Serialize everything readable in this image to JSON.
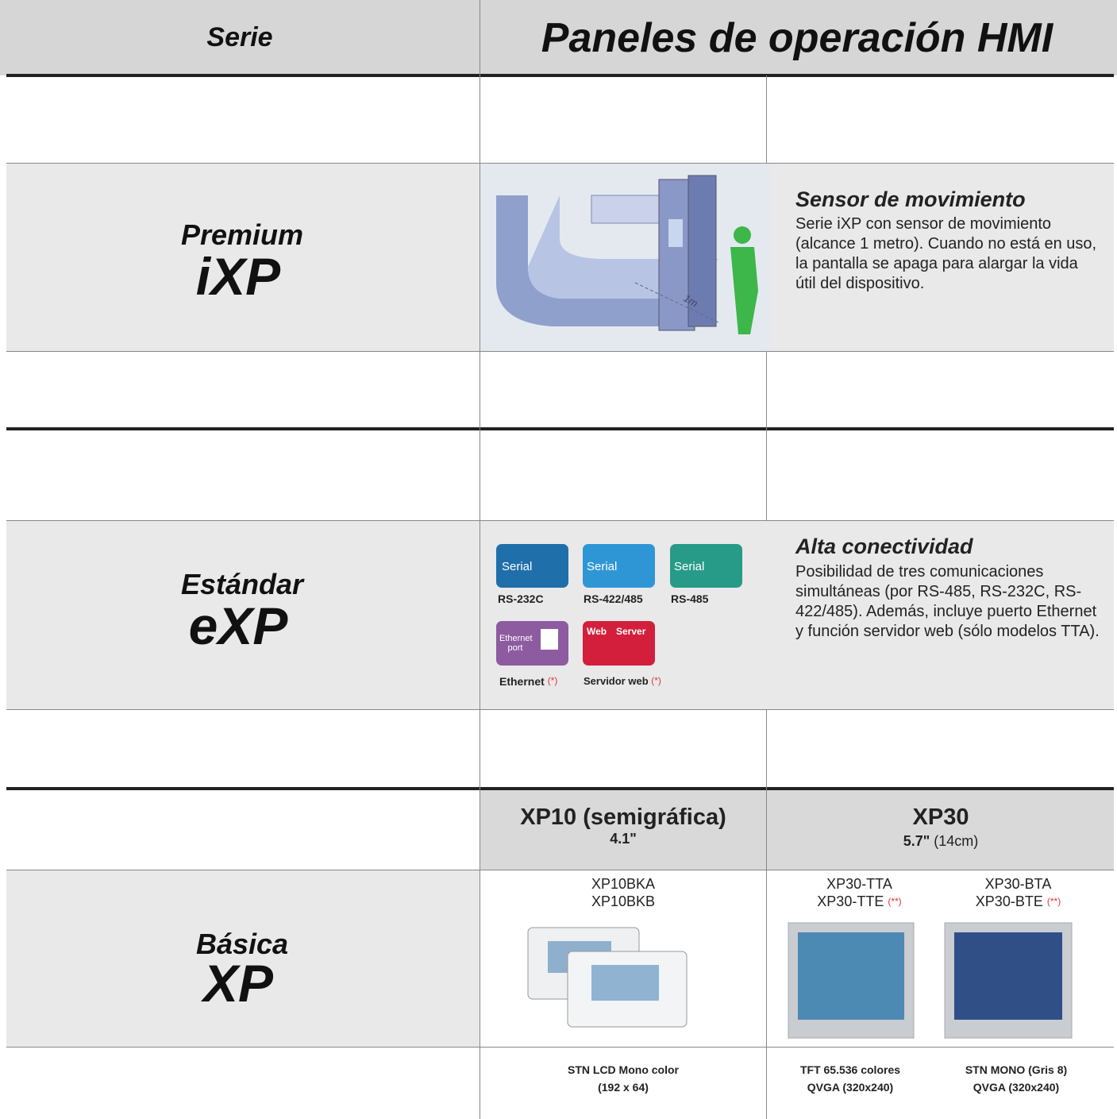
{
  "header": {
    "series": "Serie",
    "title": "Paneles de operación HMI"
  },
  "premium": {
    "tier": "Premium",
    "name": "iXP",
    "illustration_label": "1m",
    "feature": {
      "title": "Sensor de movimiento",
      "text": "Serie iXP con sensor de movimiento (alcance 1 metro). Cuando no está en uso, la pantalla se apaga para alargar la vida útil del dispositivo."
    }
  },
  "standard": {
    "tier": "Estándar",
    "name": "eXP",
    "icons": [
      {
        "label": "Serial",
        "caption": "RS-232C"
      },
      {
        "label": "Serial",
        "caption": "RS-422/485"
      },
      {
        "label": "Serial",
        "caption": "RS-485"
      },
      {
        "label": "Ethernet port",
        "caption": "Ethernet",
        "note": "(*)"
      },
      {
        "label": "Web",
        "label_2": "Server",
        "caption": "Servidor web",
        "note": "(*)"
      }
    ],
    "feature": {
      "title": "Alta conectividad",
      "text": "Posibilidad de tres comunicaciones simultáneas (por RS-485, RS-232C, RS-422/485). Además, incluye puerto Ethernet y función servidor web (sólo modelos TTA)."
    }
  },
  "basic": {
    "tier": "Básica",
    "name": "XP",
    "models": [
      {
        "name": "XP10 (semigráfica)",
        "size": "4.1\"",
        "variants": [
          {
            "lines": [
              "XP10BKA",
              "XP10BKB"
            ],
            "spec": [
              "STN LCD Mono color",
              "(192 x 64)"
            ]
          }
        ]
      },
      {
        "name": "XP30",
        "size": "5.7\"",
        "size_note": "(14cm)",
        "variants": [
          {
            "lines": [
              "XP30-TTA",
              "XP30-TTE"
            ],
            "note": "(**)",
            "spec": [
              "TFT 65.536 colores",
              "QVGA (320x240)"
            ]
          },
          {
            "lines": [
              "XP30-BTA",
              "XP30-BTE"
            ],
            "note": "(**)",
            "spec": [
              "STN MONO (Gris 8)",
              "QVGA (320x240)"
            ]
          }
        ]
      }
    ]
  }
}
